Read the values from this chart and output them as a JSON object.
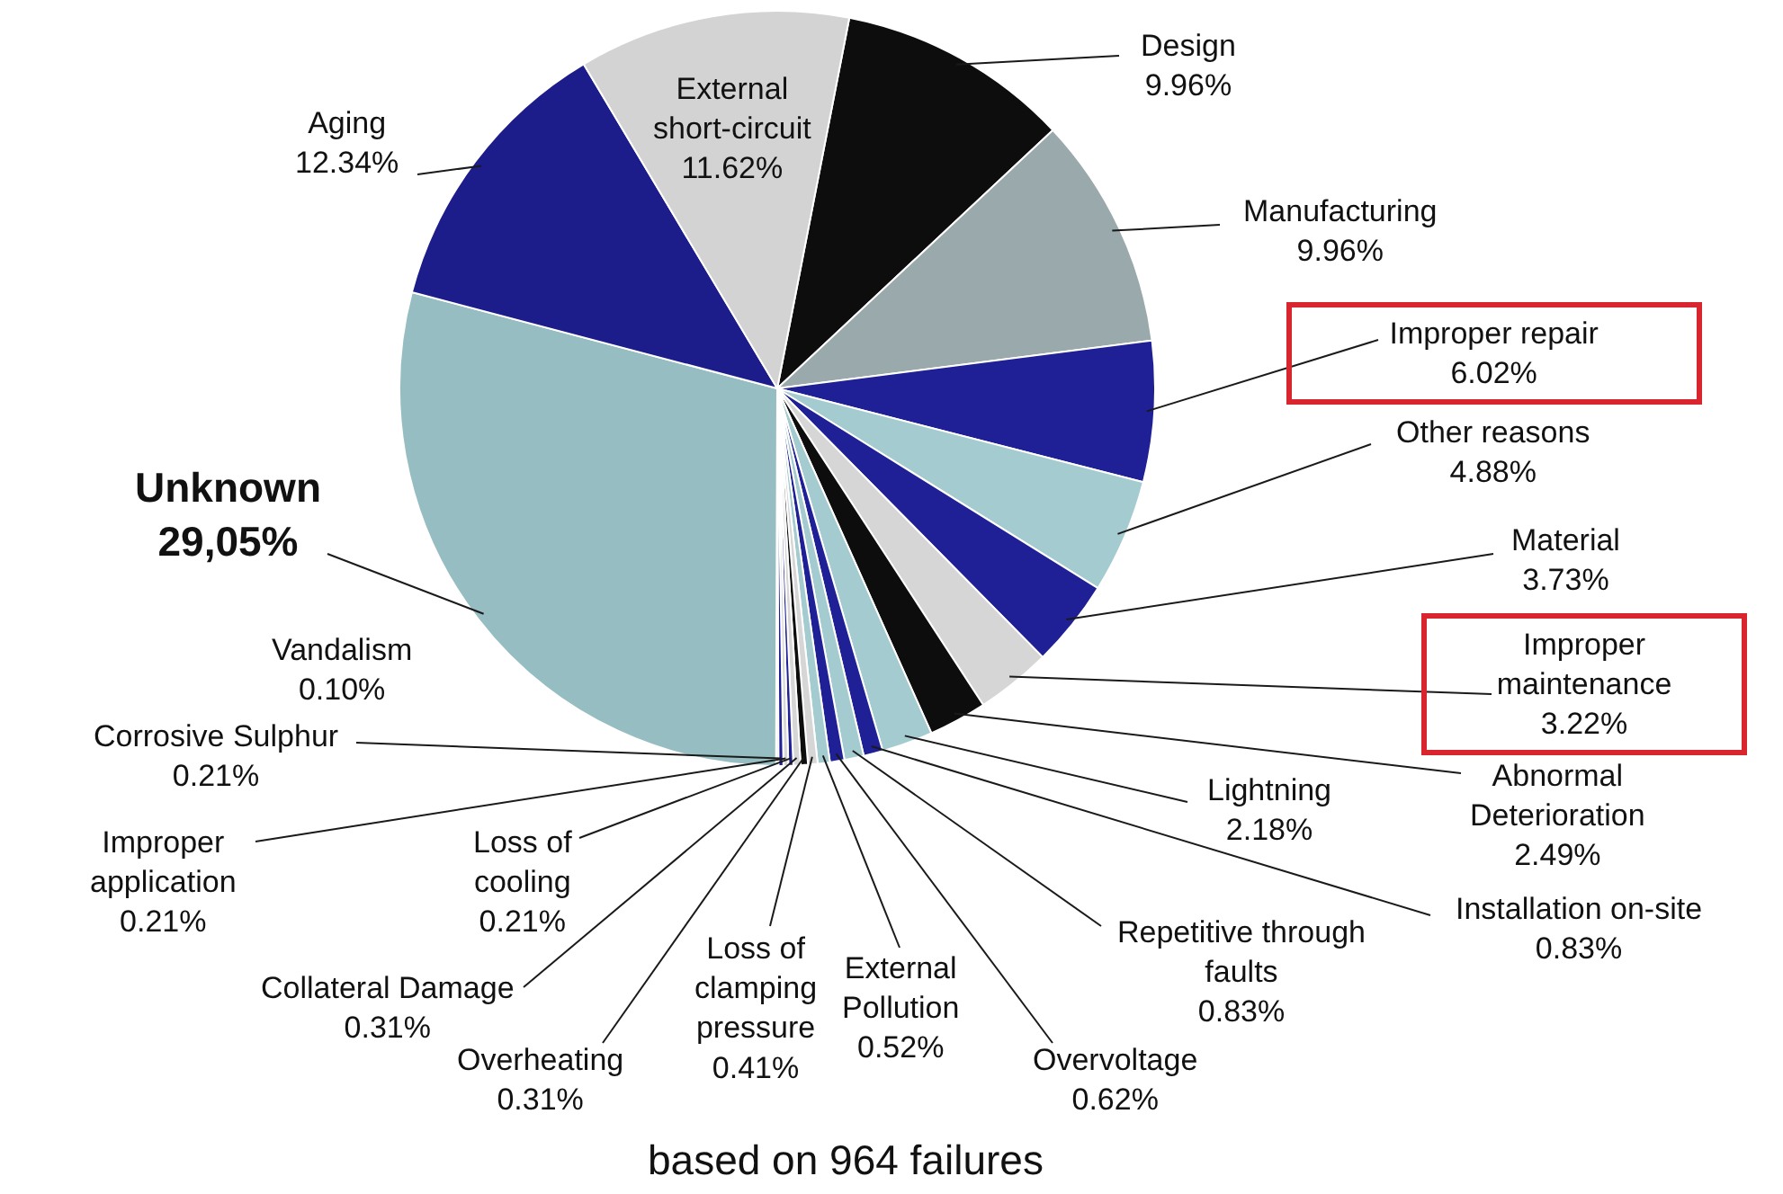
{
  "chart_data": {
    "type": "pie",
    "categories": [
      "Design",
      "Manufacturing",
      "Improper repair",
      "Other reasons",
      "Material",
      "Improper maintenance",
      "Abnormal Deterioration",
      "Lightning",
      "Installation on-site",
      "Repetitive through faults",
      "Overvoltage",
      "External Pollution",
      "Loss of clamping pressure",
      "Overheating",
      "Collateral Damage",
      "Loss of cooling",
      "Improper application",
      "Corrosive Sulphur",
      "Vandalism",
      "Unknown",
      "Aging",
      "External short-circuit"
    ],
    "values": [
      9.96,
      9.96,
      6.02,
      4.88,
      3.73,
      3.22,
      2.49,
      2.18,
      0.83,
      0.83,
      0.62,
      0.52,
      0.41,
      0.31,
      0.31,
      0.21,
      0.21,
      0.21,
      0.1,
      29.05,
      12.34,
      11.62
    ],
    "value_labels": [
      "9.96%",
      "9.96%",
      "6.02%",
      "4.88%",
      "3.73%",
      "3.22%",
      "2.49%",
      "2.18%",
      "0.83%",
      "0.83%",
      "0.62%",
      "0.52%",
      "0.41%",
      "0.31%",
      "0.31%",
      "0.21%",
      "0.21%",
      "0.21%",
      "0.10%",
      "29,05%",
      "12.34%",
      "11.62%"
    ],
    "colors": [
      "#0d0d0d",
      "#9aa9ac",
      "#1f1f96",
      "#a4cbcf",
      "#1f1f96",
      "#d6d6d6",
      "#0d0d0d",
      "#a4cbcf",
      "#1f1f96",
      "#a4cbcf",
      "#1f1f96",
      "#a4cbcf",
      "#d6d6d6",
      "#0d0d0d",
      "#d6d6d6",
      "#1f1f96",
      "#d6d6d6",
      "#1f1f96",
      "#d6d6d6",
      "#96bec2",
      "#1c1c8a",
      "#d3d3d3"
    ],
    "legend": false,
    "annotations": [
      "based on 964 failures"
    ]
  }
}
